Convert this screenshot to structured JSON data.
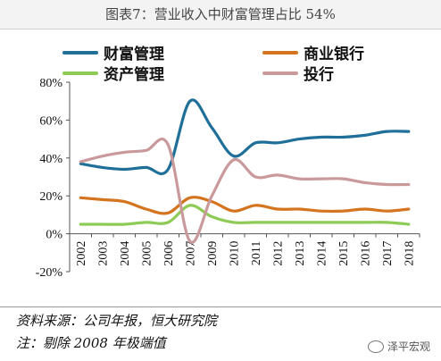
{
  "page": {
    "title": "图表7：营业收入中财富管理占比 54%"
  },
  "chart_data": {
    "type": "line",
    "categories": [
      "2002",
      "2003",
      "2004",
      "2005",
      "2006",
      "2007",
      "2009",
      "2010",
      "2011",
      "2012",
      "2013",
      "2014",
      "2015",
      "2016",
      "2017",
      "2018"
    ],
    "y_ticks": [
      "80%",
      "60%",
      "40%",
      "20%",
      "0%",
      "-20%"
    ],
    "ylim": [
      -20,
      80
    ],
    "legend_position": "top",
    "series": [
      {
        "name": "财富管理",
        "color": "#1f6f99",
        "values": [
          37,
          35,
          34,
          35,
          34,
          70,
          56,
          41,
          48,
          48,
          50,
          51,
          51,
          52,
          54,
          54
        ]
      },
      {
        "name": "商业银行",
        "color": "#d4741f",
        "values": [
          19,
          18,
          17,
          13,
          11,
          19,
          17,
          12,
          15,
          13,
          13,
          12,
          12,
          13,
          12,
          13
        ]
      },
      {
        "name": "资产管理",
        "color": "#8ecb56",
        "values": [
          5,
          5,
          5,
          6,
          6,
          15,
          9,
          6,
          6,
          6,
          6,
          6,
          6,
          6,
          6,
          5
        ]
      },
      {
        "name": "投行",
        "color": "#c9999b",
        "values": [
          38,
          41,
          43,
          44,
          47,
          -4,
          20,
          39,
          30,
          31,
          29,
          29,
          29,
          27,
          26,
          26
        ]
      }
    ]
  },
  "notes": {
    "source": "资料来源：公司年报，恒大研究院",
    "remark": "注：剔除 2008 年极端值"
  },
  "watermark": {
    "text": "泽平宏观"
  }
}
